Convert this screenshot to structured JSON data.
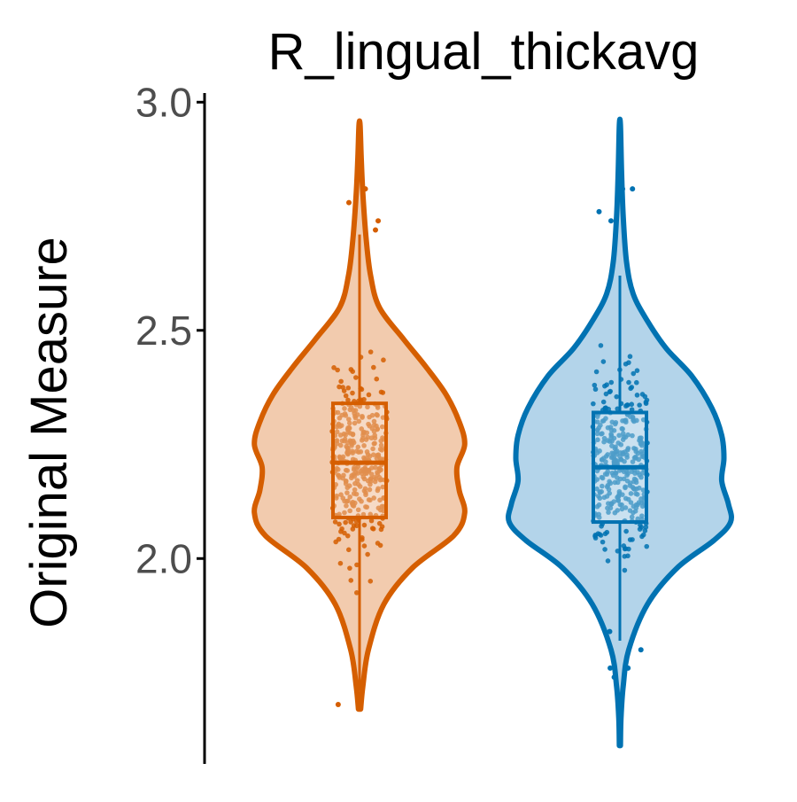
{
  "chart_data": {
    "type": "violin",
    "title": "R_lingual_thickavg",
    "xlabel": "",
    "ylabel": "Original Measure",
    "ylim": [
      1.55,
      3.02
    ],
    "yticks": [
      2.0,
      2.5,
      3.0
    ],
    "ytick_labels": [
      "2.0",
      "2.5",
      "3.0"
    ],
    "grid": false,
    "legend": "none",
    "series": [
      {
        "color": "#D55E00",
        "fill": "#F2CBAE",
        "min": 1.67,
        "max": 2.95,
        "box": {
          "q1": 2.09,
          "median": 2.21,
          "q3": 2.34,
          "whisker_low": 1.71,
          "whisker_high": 2.71
        },
        "outliers": [
          2.81,
          2.78,
          2.74,
          2.72,
          1.68
        ],
        "density": [
          [
            1.67,
            0.01
          ],
          [
            1.72,
            0.03
          ],
          [
            1.8,
            0.08
          ],
          [
            1.9,
            0.22
          ],
          [
            1.98,
            0.48
          ],
          [
            2.05,
            0.85
          ],
          [
            2.1,
            0.95
          ],
          [
            2.15,
            0.9
          ],
          [
            2.2,
            0.88
          ],
          [
            2.25,
            0.95
          ],
          [
            2.3,
            0.9
          ],
          [
            2.36,
            0.78
          ],
          [
            2.42,
            0.6
          ],
          [
            2.48,
            0.4
          ],
          [
            2.55,
            0.18
          ],
          [
            2.62,
            0.1
          ],
          [
            2.7,
            0.06
          ],
          [
            2.8,
            0.03
          ],
          [
            2.88,
            0.015
          ],
          [
            2.95,
            0.005
          ]
        ]
      },
      {
        "color": "#0072B2",
        "fill": "#B3D4EA",
        "min": 1.59,
        "max": 2.95,
        "box": {
          "q1": 2.08,
          "median": 2.2,
          "q3": 2.32,
          "whisker_low": 1.82,
          "whisker_high": 2.62
        },
        "outliers": [
          2.81,
          2.81,
          2.76,
          2.74,
          1.84,
          1.8,
          1.76,
          1.76,
          1.74
        ],
        "density": [
          [
            1.59,
            0.005
          ],
          [
            1.65,
            0.01
          ],
          [
            1.72,
            0.03
          ],
          [
            1.8,
            0.08
          ],
          [
            1.9,
            0.25
          ],
          [
            1.98,
            0.52
          ],
          [
            2.04,
            0.85
          ],
          [
            2.08,
            1.0
          ],
          [
            2.12,
            0.98
          ],
          [
            2.17,
            0.92
          ],
          [
            2.22,
            0.94
          ],
          [
            2.27,
            0.92
          ],
          [
            2.33,
            0.83
          ],
          [
            2.4,
            0.65
          ],
          [
            2.46,
            0.42
          ],
          [
            2.52,
            0.25
          ],
          [
            2.58,
            0.12
          ],
          [
            2.65,
            0.06
          ],
          [
            2.75,
            0.03
          ],
          [
            2.85,
            0.015
          ],
          [
            2.95,
            0.005
          ]
        ]
      }
    ]
  }
}
